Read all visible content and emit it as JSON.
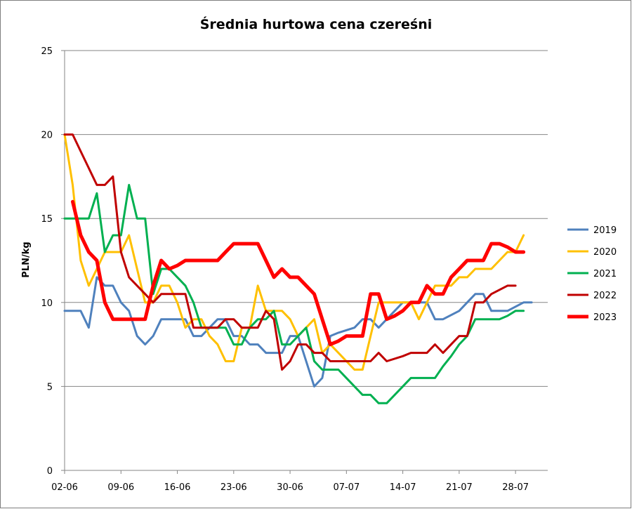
{
  "chart_data": {
    "type": "line",
    "title": "Średnia hurtowa cena czereśni",
    "xlabel": "",
    "ylabel": "PLN/kg",
    "ylim": [
      0,
      25
    ],
    "yticks": [
      "0",
      "5",
      "10",
      "15",
      "20",
      "25"
    ],
    "xlim_days": [
      0,
      60
    ],
    "xticks": [
      "02-06",
      "09-06",
      "16-06",
      "23-06",
      "30-06",
      "07-07",
      "14-07",
      "21-07",
      "28-07"
    ],
    "grid": "horizontal",
    "legend": "right",
    "series": [
      {
        "name": "2019",
        "color": "#4f81bd",
        "width": 3,
        "points": [
          [
            0,
            9.5
          ],
          [
            2,
            9.5
          ],
          [
            3,
            8.5
          ],
          [
            4,
            11.5
          ],
          [
            5,
            11
          ],
          [
            6,
            11
          ],
          [
            7,
            10
          ],
          [
            8,
            9.5
          ],
          [
            9,
            8
          ],
          [
            10,
            7.5
          ],
          [
            11,
            8
          ],
          [
            12,
            9
          ],
          [
            13,
            9
          ],
          [
            15,
            9
          ],
          [
            16,
            8
          ],
          [
            17,
            8
          ],
          [
            18,
            8.5
          ],
          [
            19,
            9
          ],
          [
            20,
            9
          ],
          [
            21,
            8
          ],
          [
            22,
            8
          ],
          [
            23,
            7.5
          ],
          [
            24,
            7.5
          ],
          [
            25,
            7
          ],
          [
            27,
            7
          ],
          [
            28,
            8
          ],
          [
            29,
            8
          ],
          [
            31,
            5
          ],
          [
            32,
            5.5
          ],
          [
            33,
            8
          ],
          [
            34,
            8.2
          ],
          [
            36,
            8.5
          ],
          [
            37,
            9
          ],
          [
            38,
            9
          ],
          [
            39,
            8.5
          ],
          [
            40,
            9
          ],
          [
            42,
            10
          ],
          [
            44,
            10
          ],
          [
            45,
            10
          ],
          [
            46,
            9
          ],
          [
            47,
            9
          ],
          [
            49,
            9.5
          ],
          [
            50,
            10
          ],
          [
            51,
            10.5
          ],
          [
            52,
            10.5
          ],
          [
            53,
            9.5
          ],
          [
            54,
            9.5
          ],
          [
            55,
            9.5
          ],
          [
            57,
            10
          ],
          [
            58,
            10
          ]
        ]
      },
      {
        "name": "2020",
        "color": "#ffc000",
        "width": 3,
        "points": [
          [
            0,
            20
          ],
          [
            1,
            17
          ],
          [
            2,
            12.5
          ],
          [
            3,
            11
          ],
          [
            4,
            12
          ],
          [
            5,
            13
          ],
          [
            6,
            13
          ],
          [
            7,
            13
          ],
          [
            8,
            14
          ],
          [
            9,
            12
          ],
          [
            10,
            10
          ],
          [
            11,
            10
          ],
          [
            12,
            11
          ],
          [
            13,
            11
          ],
          [
            14,
            10
          ],
          [
            15,
            8.5
          ],
          [
            16,
            9
          ],
          [
            17,
            9
          ],
          [
            18,
            8
          ],
          [
            19,
            7.5
          ],
          [
            20,
            6.5
          ],
          [
            21,
            6.5
          ],
          [
            22,
            8.5
          ],
          [
            23,
            8.5
          ],
          [
            24,
            11
          ],
          [
            25,
            9.5
          ],
          [
            26,
            9.5
          ],
          [
            27,
            9.5
          ],
          [
            28,
            9
          ],
          [
            29,
            8
          ],
          [
            30,
            8.5
          ],
          [
            31,
            9
          ],
          [
            32,
            7
          ],
          [
            33,
            7.5
          ],
          [
            34,
            7
          ],
          [
            35,
            6.5
          ],
          [
            36,
            6
          ],
          [
            37,
            6
          ],
          [
            38,
            8
          ],
          [
            39,
            10
          ],
          [
            40,
            10
          ],
          [
            41,
            10
          ],
          [
            42,
            10
          ],
          [
            43,
            10
          ],
          [
            44,
            9
          ],
          [
            45,
            10
          ],
          [
            46,
            11
          ],
          [
            47,
            11
          ],
          [
            48,
            11
          ],
          [
            49,
            11.5
          ],
          [
            50,
            11.5
          ],
          [
            51,
            12
          ],
          [
            52,
            12
          ],
          [
            53,
            12
          ],
          [
            54,
            12.5
          ],
          [
            55,
            13
          ],
          [
            56,
            13
          ],
          [
            57,
            14
          ]
        ]
      },
      {
        "name": "2021",
        "color": "#00b050",
        "width": 3,
        "points": [
          [
            0,
            15
          ],
          [
            1,
            15
          ],
          [
            2,
            15
          ],
          [
            3,
            15
          ],
          [
            4,
            16.5
          ],
          [
            5,
            13
          ],
          [
            6,
            14
          ],
          [
            7,
            14
          ],
          [
            8,
            17
          ],
          [
            9,
            15
          ],
          [
            10,
            15
          ],
          [
            11,
            10.5
          ],
          [
            12,
            12
          ],
          [
            13,
            12
          ],
          [
            14,
            11.5
          ],
          [
            15,
            11
          ],
          [
            16,
            10
          ],
          [
            17,
            8.5
          ],
          [
            18,
            8.5
          ],
          [
            19,
            8.5
          ],
          [
            20,
            8.5
          ],
          [
            21,
            7.5
          ],
          [
            22,
            7.5
          ],
          [
            23,
            8.5
          ],
          [
            24,
            9
          ],
          [
            25,
            9
          ],
          [
            26,
            9.5
          ],
          [
            27,
            7.5
          ],
          [
            28,
            7.5
          ],
          [
            29,
            8
          ],
          [
            30,
            8.5
          ],
          [
            31,
            6.5
          ],
          [
            32,
            6
          ],
          [
            33,
            6
          ],
          [
            34,
            6
          ],
          [
            35,
            5.5
          ],
          [
            36,
            5
          ],
          [
            37,
            4.5
          ],
          [
            38,
            4.5
          ],
          [
            39,
            4
          ],
          [
            40,
            4
          ],
          [
            41,
            4.5
          ],
          [
            42,
            5
          ],
          [
            43,
            5.5
          ],
          [
            44,
            5.5
          ],
          [
            45,
            5.5
          ],
          [
            46,
            5.5
          ],
          [
            47,
            6.2
          ],
          [
            48,
            6.8
          ],
          [
            49,
            7.5
          ],
          [
            50,
            8
          ],
          [
            51,
            9
          ],
          [
            52,
            9
          ],
          [
            53,
            9
          ],
          [
            54,
            9
          ],
          [
            55,
            9.2
          ],
          [
            56,
            9.5
          ],
          [
            57,
            9.5
          ]
        ]
      },
      {
        "name": "2022",
        "color": "#c00000",
        "width": 3,
        "points": [
          [
            0,
            20
          ],
          [
            1,
            20
          ],
          [
            2,
            19
          ],
          [
            3,
            18
          ],
          [
            4,
            17
          ],
          [
            5,
            17
          ],
          [
            6,
            17.5
          ],
          [
            7,
            13
          ],
          [
            8,
            11.5
          ],
          [
            9,
            11
          ],
          [
            10,
            10.5
          ],
          [
            11,
            10
          ],
          [
            12,
            10.5
          ],
          [
            13,
            10.5
          ],
          [
            14,
            10.5
          ],
          [
            15,
            10.5
          ],
          [
            16,
            8.5
          ],
          [
            17,
            8.5
          ],
          [
            18,
            8.5
          ],
          [
            19,
            8.5
          ],
          [
            20,
            9
          ],
          [
            21,
            9
          ],
          [
            22,
            8.5
          ],
          [
            23,
            8.5
          ],
          [
            24,
            8.5
          ],
          [
            25,
            9.5
          ],
          [
            26,
            9
          ],
          [
            27,
            6
          ],
          [
            28,
            6.5
          ],
          [
            29,
            7.5
          ],
          [
            30,
            7.5
          ],
          [
            31,
            7
          ],
          [
            32,
            7
          ],
          [
            33,
            6.5
          ],
          [
            34,
            6.5
          ],
          [
            35,
            6.5
          ],
          [
            36,
            6.5
          ],
          [
            37,
            6.5
          ],
          [
            38,
            6.5
          ],
          [
            39,
            7
          ],
          [
            40,
            6.5
          ],
          [
            42,
            6.8
          ],
          [
            43,
            7
          ],
          [
            44,
            7
          ],
          [
            45,
            7
          ],
          [
            46,
            7.5
          ],
          [
            47,
            7
          ],
          [
            48,
            7.5
          ],
          [
            49,
            8
          ],
          [
            50,
            8
          ],
          [
            51,
            10
          ],
          [
            52,
            10
          ],
          [
            53,
            10.5
          ],
          [
            55,
            11
          ],
          [
            56,
            11
          ]
        ]
      },
      {
        "name": "2023",
        "color": "#ff0000",
        "width": 5,
        "points": [
          [
            1,
            16
          ],
          [
            2,
            14
          ],
          [
            3,
            13
          ],
          [
            4,
            12.5
          ],
          [
            5,
            10
          ],
          [
            6,
            9
          ],
          [
            7,
            9
          ],
          [
            8,
            9
          ],
          [
            9,
            9
          ],
          [
            10,
            9
          ],
          [
            11,
            11
          ],
          [
            12,
            12.5
          ],
          [
            13,
            12
          ],
          [
            14,
            12.2
          ],
          [
            15,
            12.5
          ],
          [
            16,
            12.5
          ],
          [
            17,
            12.5
          ],
          [
            18,
            12.5
          ],
          [
            19,
            12.5
          ],
          [
            20,
            13
          ],
          [
            21,
            13.5
          ],
          [
            22,
            13.5
          ],
          [
            23,
            13.5
          ],
          [
            24,
            13.5
          ],
          [
            25,
            12.5
          ],
          [
            26,
            11.5
          ],
          [
            27,
            12
          ],
          [
            28,
            11.5
          ],
          [
            29,
            11.5
          ],
          [
            30,
            11
          ],
          [
            31,
            10.5
          ],
          [
            32,
            9
          ],
          [
            33,
            7.5
          ],
          [
            34,
            7.7
          ],
          [
            35,
            8
          ],
          [
            36,
            8
          ],
          [
            37,
            8
          ],
          [
            38,
            10.5
          ],
          [
            39,
            10.5
          ],
          [
            40,
            9
          ],
          [
            41,
            9.2
          ],
          [
            42,
            9.5
          ],
          [
            43,
            10
          ],
          [
            44,
            10
          ],
          [
            45,
            11
          ],
          [
            46,
            10.5
          ],
          [
            47,
            10.5
          ],
          [
            48,
            11.5
          ],
          [
            49,
            12
          ],
          [
            50,
            12.5
          ],
          [
            51,
            12.5
          ],
          [
            52,
            12.5
          ],
          [
            53,
            13.5
          ],
          [
            54,
            13.5
          ],
          [
            55,
            13.3
          ],
          [
            56,
            13
          ],
          [
            57,
            13
          ]
        ]
      }
    ]
  }
}
